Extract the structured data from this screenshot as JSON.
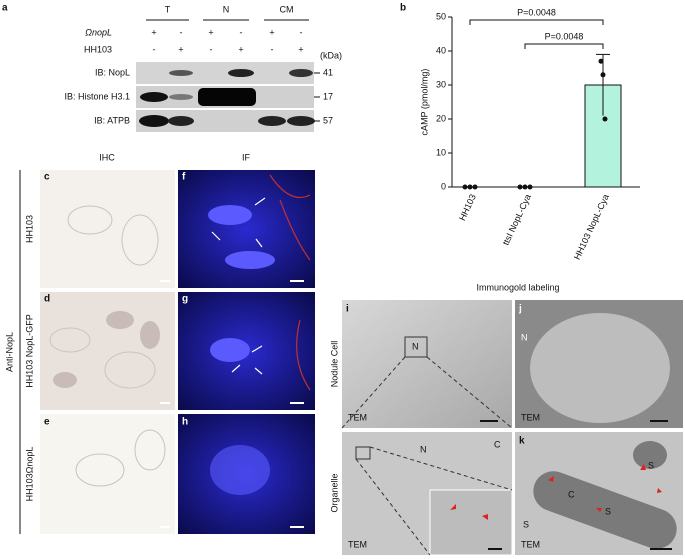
{
  "panel_a": {
    "label": "a",
    "columns": [
      "T",
      "N",
      "CM"
    ],
    "rows": [
      {
        "name": "ΩnopL",
        "signs": [
          "+",
          "-",
          "+",
          "-",
          "+",
          "-"
        ]
      },
      {
        "name": "HH103",
        "signs": [
          "-",
          "+",
          "-",
          "+",
          "-",
          "+"
        ]
      }
    ],
    "unit": "(kDa)",
    "blots": [
      {
        "name": "IB: NopL",
        "kda": 41
      },
      {
        "name": "IB: Histone H3.1",
        "kda": 17
      },
      {
        "name": "IB: ATPB",
        "kda": 57
      }
    ]
  },
  "chart_data": {
    "type": "bar",
    "panel_label": "b",
    "y_label": "cAMP (pmol/mg)",
    "categories": [
      "HH103",
      "ttsI NopL-Cya",
      "HH103 NopL-Cya"
    ],
    "values": [
      0,
      0,
      30
    ],
    "errors": [
      0,
      0,
      9
    ],
    "points": [
      [
        0,
        0,
        0
      ],
      [
        0,
        0,
        0
      ],
      [
        37,
        33,
        20
      ]
    ],
    "color": "#b3f3dd",
    "ylim": [
      0,
      50
    ],
    "yticks": [
      0,
      10,
      20,
      30,
      40,
      50
    ],
    "annotations": [
      "P=0.0048",
      "P=0.0048"
    ]
  },
  "panel_c_h": {
    "headers": [
      "IHC",
      "IF"
    ],
    "group_label": "Anti-NopL",
    "rows": [
      "HH103",
      "HH103 NopL-GFP",
      "HH103ΩnopL"
    ],
    "letters": [
      [
        "c",
        "f"
      ],
      [
        "d",
        "g"
      ],
      [
        "e",
        "h"
      ]
    ]
  },
  "panel_i_k": {
    "title": "Immunogold labeling",
    "rows": [
      "Nodule Cell",
      "Organelle"
    ],
    "letters": [
      "i",
      "j",
      "k"
    ],
    "labels": [
      "N",
      "TEM",
      "N",
      "TEM",
      "N",
      "C",
      "TEM",
      "C",
      "S",
      "S",
      "S",
      "TEM"
    ]
  }
}
